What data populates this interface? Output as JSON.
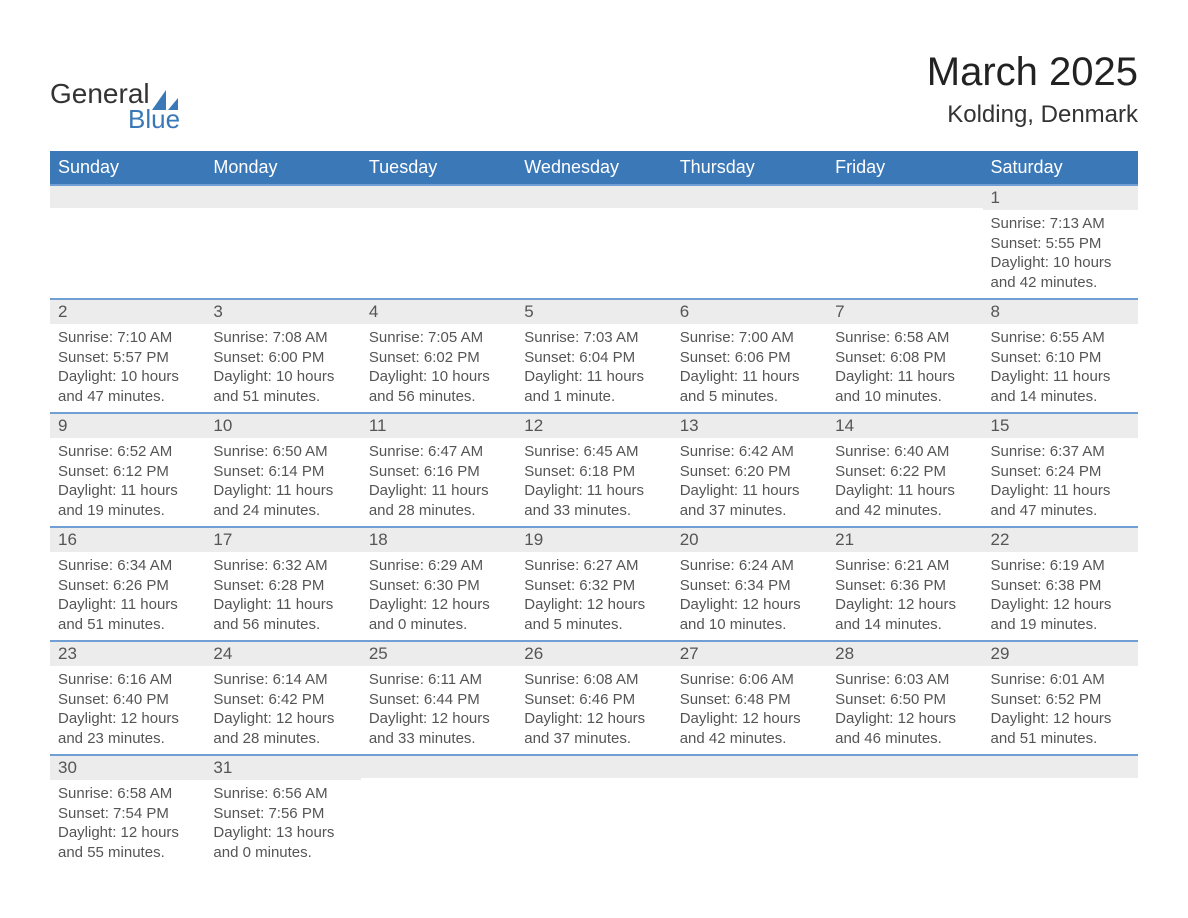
{
  "brand": {
    "word1": "General",
    "word2": "Blue",
    "text_color": "#333333",
    "accent_color": "#3b78b8"
  },
  "title": {
    "month_year": "March 2025",
    "location": "Kolding, Denmark",
    "title_fontsize": 40,
    "location_fontsize": 24
  },
  "calendar": {
    "header_bg": "#3b78b8",
    "header_fg": "#ffffff",
    "daynum_bg": "#ececec",
    "row_divider": "#6f9fd3",
    "text_color": "#555555",
    "cell_fontsize": 15,
    "days_of_week": [
      "Sunday",
      "Monday",
      "Tuesday",
      "Wednesday",
      "Thursday",
      "Friday",
      "Saturday"
    ],
    "weeks": [
      [
        null,
        null,
        null,
        null,
        null,
        null,
        {
          "n": "1",
          "sunrise": "Sunrise: 7:13 AM",
          "sunset": "Sunset: 5:55 PM",
          "daylight": "Daylight: 10 hours and 42 minutes."
        }
      ],
      [
        {
          "n": "2",
          "sunrise": "Sunrise: 7:10 AM",
          "sunset": "Sunset: 5:57 PM",
          "daylight": "Daylight: 10 hours and 47 minutes."
        },
        {
          "n": "3",
          "sunrise": "Sunrise: 7:08 AM",
          "sunset": "Sunset: 6:00 PM",
          "daylight": "Daylight: 10 hours and 51 minutes."
        },
        {
          "n": "4",
          "sunrise": "Sunrise: 7:05 AM",
          "sunset": "Sunset: 6:02 PM",
          "daylight": "Daylight: 10 hours and 56 minutes."
        },
        {
          "n": "5",
          "sunrise": "Sunrise: 7:03 AM",
          "sunset": "Sunset: 6:04 PM",
          "daylight": "Daylight: 11 hours and 1 minute."
        },
        {
          "n": "6",
          "sunrise": "Sunrise: 7:00 AM",
          "sunset": "Sunset: 6:06 PM",
          "daylight": "Daylight: 11 hours and 5 minutes."
        },
        {
          "n": "7",
          "sunrise": "Sunrise: 6:58 AM",
          "sunset": "Sunset: 6:08 PM",
          "daylight": "Daylight: 11 hours and 10 minutes."
        },
        {
          "n": "8",
          "sunrise": "Sunrise: 6:55 AM",
          "sunset": "Sunset: 6:10 PM",
          "daylight": "Daylight: 11 hours and 14 minutes."
        }
      ],
      [
        {
          "n": "9",
          "sunrise": "Sunrise: 6:52 AM",
          "sunset": "Sunset: 6:12 PM",
          "daylight": "Daylight: 11 hours and 19 minutes."
        },
        {
          "n": "10",
          "sunrise": "Sunrise: 6:50 AM",
          "sunset": "Sunset: 6:14 PM",
          "daylight": "Daylight: 11 hours and 24 minutes."
        },
        {
          "n": "11",
          "sunrise": "Sunrise: 6:47 AM",
          "sunset": "Sunset: 6:16 PM",
          "daylight": "Daylight: 11 hours and 28 minutes."
        },
        {
          "n": "12",
          "sunrise": "Sunrise: 6:45 AM",
          "sunset": "Sunset: 6:18 PM",
          "daylight": "Daylight: 11 hours and 33 minutes."
        },
        {
          "n": "13",
          "sunrise": "Sunrise: 6:42 AM",
          "sunset": "Sunset: 6:20 PM",
          "daylight": "Daylight: 11 hours and 37 minutes."
        },
        {
          "n": "14",
          "sunrise": "Sunrise: 6:40 AM",
          "sunset": "Sunset: 6:22 PM",
          "daylight": "Daylight: 11 hours and 42 minutes."
        },
        {
          "n": "15",
          "sunrise": "Sunrise: 6:37 AM",
          "sunset": "Sunset: 6:24 PM",
          "daylight": "Daylight: 11 hours and 47 minutes."
        }
      ],
      [
        {
          "n": "16",
          "sunrise": "Sunrise: 6:34 AM",
          "sunset": "Sunset: 6:26 PM",
          "daylight": "Daylight: 11 hours and 51 minutes."
        },
        {
          "n": "17",
          "sunrise": "Sunrise: 6:32 AM",
          "sunset": "Sunset: 6:28 PM",
          "daylight": "Daylight: 11 hours and 56 minutes."
        },
        {
          "n": "18",
          "sunrise": "Sunrise: 6:29 AM",
          "sunset": "Sunset: 6:30 PM",
          "daylight": "Daylight: 12 hours and 0 minutes."
        },
        {
          "n": "19",
          "sunrise": "Sunrise: 6:27 AM",
          "sunset": "Sunset: 6:32 PM",
          "daylight": "Daylight: 12 hours and 5 minutes."
        },
        {
          "n": "20",
          "sunrise": "Sunrise: 6:24 AM",
          "sunset": "Sunset: 6:34 PM",
          "daylight": "Daylight: 12 hours and 10 minutes."
        },
        {
          "n": "21",
          "sunrise": "Sunrise: 6:21 AM",
          "sunset": "Sunset: 6:36 PM",
          "daylight": "Daylight: 12 hours and 14 minutes."
        },
        {
          "n": "22",
          "sunrise": "Sunrise: 6:19 AM",
          "sunset": "Sunset: 6:38 PM",
          "daylight": "Daylight: 12 hours and 19 minutes."
        }
      ],
      [
        {
          "n": "23",
          "sunrise": "Sunrise: 6:16 AM",
          "sunset": "Sunset: 6:40 PM",
          "daylight": "Daylight: 12 hours and 23 minutes."
        },
        {
          "n": "24",
          "sunrise": "Sunrise: 6:14 AM",
          "sunset": "Sunset: 6:42 PM",
          "daylight": "Daylight: 12 hours and 28 minutes."
        },
        {
          "n": "25",
          "sunrise": "Sunrise: 6:11 AM",
          "sunset": "Sunset: 6:44 PM",
          "daylight": "Daylight: 12 hours and 33 minutes."
        },
        {
          "n": "26",
          "sunrise": "Sunrise: 6:08 AM",
          "sunset": "Sunset: 6:46 PM",
          "daylight": "Daylight: 12 hours and 37 minutes."
        },
        {
          "n": "27",
          "sunrise": "Sunrise: 6:06 AM",
          "sunset": "Sunset: 6:48 PM",
          "daylight": "Daylight: 12 hours and 42 minutes."
        },
        {
          "n": "28",
          "sunrise": "Sunrise: 6:03 AM",
          "sunset": "Sunset: 6:50 PM",
          "daylight": "Daylight: 12 hours and 46 minutes."
        },
        {
          "n": "29",
          "sunrise": "Sunrise: 6:01 AM",
          "sunset": "Sunset: 6:52 PM",
          "daylight": "Daylight: 12 hours and 51 minutes."
        }
      ],
      [
        {
          "n": "30",
          "sunrise": "Sunrise: 6:58 AM",
          "sunset": "Sunset: 7:54 PM",
          "daylight": "Daylight: 12 hours and 55 minutes."
        },
        {
          "n": "31",
          "sunrise": "Sunrise: 6:56 AM",
          "sunset": "Sunset: 7:56 PM",
          "daylight": "Daylight: 13 hours and 0 minutes."
        },
        null,
        null,
        null,
        null,
        null
      ]
    ]
  }
}
